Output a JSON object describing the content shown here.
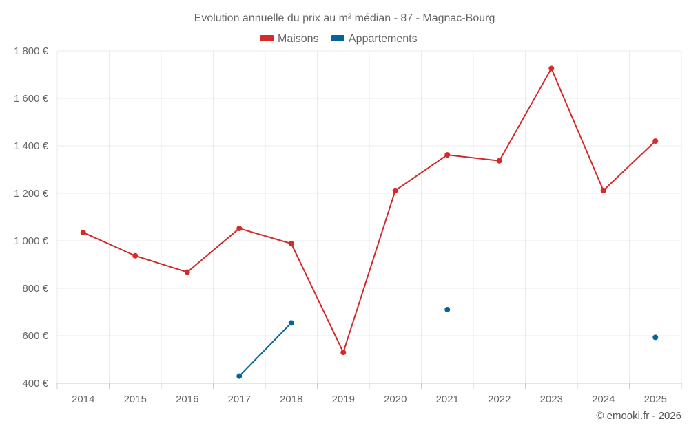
{
  "chart_data": {
    "type": "line",
    "title": "Evolution annuelle du prix au m² médian - 87 - Magnac-Bourg",
    "xlabel": "",
    "ylabel": "",
    "x": [
      "2014",
      "2015",
      "2016",
      "2017",
      "2018",
      "2019",
      "2020",
      "2021",
      "2022",
      "2023",
      "2024",
      "2025"
    ],
    "ylim": [
      400,
      1800
    ],
    "y_ticks": [
      400,
      600,
      800,
      1000,
      1200,
      1400,
      1600,
      1800
    ],
    "y_tick_labels": [
      "400 €",
      "600 €",
      "800 €",
      "1 000 €",
      "1 200 €",
      "1 400 €",
      "1 600 €",
      "1 800 €"
    ],
    "grid": true,
    "legend_position": "top-center",
    "series": [
      {
        "name": "Maisons",
        "color": "#d42a2a",
        "values": [
          1035,
          937,
          868,
          1052,
          988,
          530,
          1212,
          1362,
          1337,
          1726,
          1212,
          1420
        ]
      },
      {
        "name": "Appartements",
        "color": "#06649c",
        "values": [
          null,
          null,
          null,
          430,
          654,
          null,
          null,
          710,
          null,
          null,
          null,
          593
        ]
      }
    ],
    "credit": "© emooki.fr - 2026"
  }
}
